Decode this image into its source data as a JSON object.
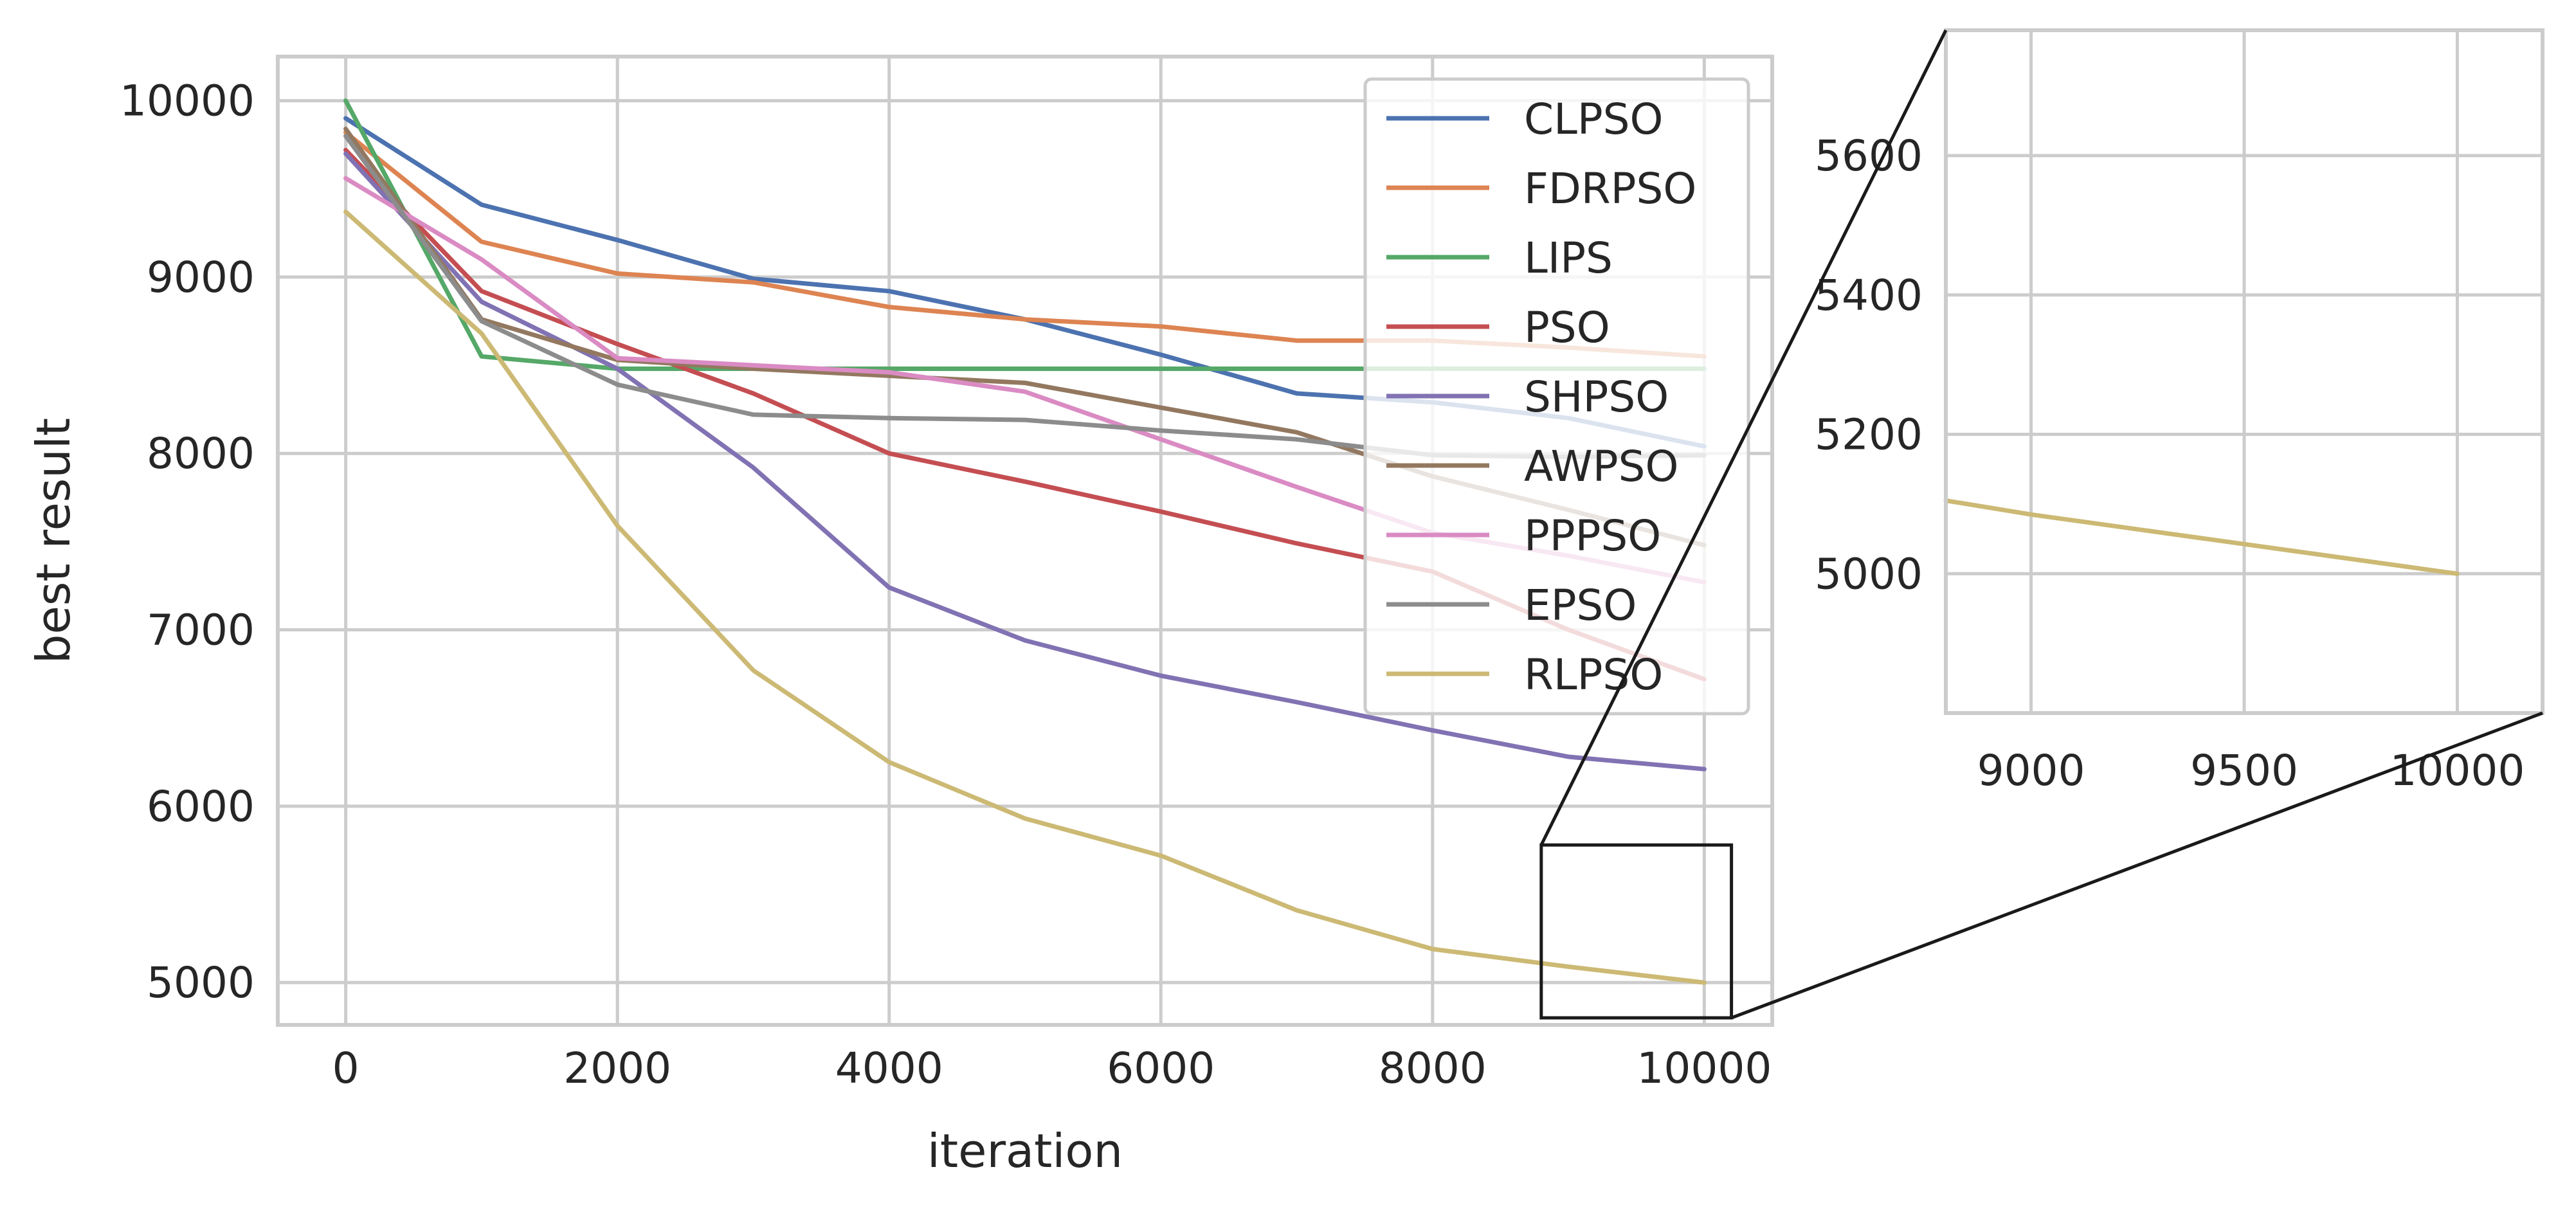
{
  "chart_data": [
    {
      "type": "line",
      "name": "main",
      "xlabel": "iteration",
      "ylabel": "best result",
      "xlim": [
        -500,
        10500
      ],
      "ylim": [
        4760,
        10250
      ],
      "xticks": [
        0,
        2000,
        4000,
        6000,
        8000,
        10000
      ],
      "yticks": [
        5000,
        6000,
        7000,
        8000,
        9000,
        10000
      ],
      "grid": true,
      "legend_position": "top-right",
      "x": [
        0,
        1000,
        2000,
        3000,
        4000,
        5000,
        6000,
        7000,
        8000,
        9000,
        10000
      ],
      "series": [
        {
          "name": "CLPSO",
          "color": "#4c72b0",
          "values": [
            9900,
            9410,
            9210,
            8990,
            8920,
            8760,
            8560,
            8340,
            8290,
            8200,
            8040
          ]
        },
        {
          "name": "FDRPSO",
          "color": "#dd8452",
          "values": [
            9820,
            9200,
            9020,
            8970,
            8830,
            8760,
            8720,
            8640,
            8640,
            8600,
            8550
          ]
        },
        {
          "name": "LIPS",
          "color": "#55a868",
          "values": [
            10000,
            8550,
            8480,
            8480,
            8480,
            8480,
            8480,
            8480,
            8480,
            8480,
            8480
          ]
        },
        {
          "name": "PSO",
          "color": "#c44e52",
          "values": [
            9720,
            8920,
            8620,
            8340,
            8000,
            7840,
            7670,
            7490,
            7330,
            7000,
            6720
          ]
        },
        {
          "name": "SHPSO",
          "color": "#8172b3",
          "values": [
            9700,
            8860,
            8480,
            7920,
            7240,
            6940,
            6740,
            6590,
            6430,
            6280,
            6210
          ]
        },
        {
          "name": "AWPSO",
          "color": "#937860",
          "values": [
            9840,
            8760,
            8530,
            8480,
            8440,
            8400,
            8260,
            8120,
            7870,
            7680,
            7480
          ]
        },
        {
          "name": "PPPSO",
          "color": "#da8bc3",
          "values": [
            9560,
            9100,
            8540,
            8500,
            8460,
            8350,
            8080,
            7810,
            7550,
            7420,
            7270
          ]
        },
        {
          "name": "EPSO",
          "color": "#8c8c8c",
          "values": [
            9800,
            8750,
            8390,
            8220,
            8200,
            8190,
            8130,
            8080,
            7990,
            7980,
            7990
          ]
        },
        {
          "name": "RLPSO",
          "color": "#ccb974",
          "values": [
            9370,
            8680,
            7590,
            6770,
            6250,
            5930,
            5720,
            5410,
            5190,
            5090,
            5000
          ]
        }
      ]
    },
    {
      "type": "line",
      "name": "zoom-inset",
      "xlim": [
        8800,
        10200
      ],
      "ylim": [
        4800,
        5780
      ],
      "xticks": [
        9000,
        9500,
        10000
      ],
      "yticks": [
        5000,
        5200,
        5400,
        5600
      ],
      "grid": true,
      "x": [
        8800,
        9000,
        10000
      ],
      "series": [
        {
          "name": "RLPSO",
          "color": "#ccb974",
          "values": [
            5105,
            5085,
            5000
          ]
        }
      ]
    }
  ]
}
